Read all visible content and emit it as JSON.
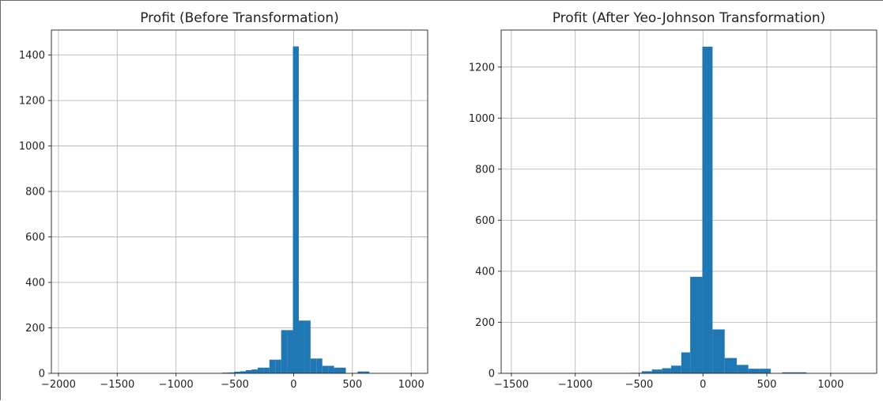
{
  "chart_data": [
    {
      "type": "bar",
      "title": "Profit (Before Transformation)",
      "xlabel": "",
      "ylabel": "",
      "xlim": [
        -2060,
        1140
      ],
      "ylim": [
        0,
        1510
      ],
      "grid": true,
      "bar_color": "#1f77b4",
      "xticks": [
        -2000,
        -1500,
        -1000,
        -500,
        0,
        500,
        1000
      ],
      "xtick_labels": [
        "−2000",
        "−1500",
        "−1000",
        "−500",
        "0",
        "500",
        "1000"
      ],
      "yticks": [
        0,
        200,
        400,
        600,
        800,
        1000,
        1200,
        1400
      ],
      "ytick_labels": [
        "0",
        "200",
        "400",
        "600",
        "800",
        "1000",
        "1200",
        "1400"
      ],
      "bins": [
        {
          "x0": -606,
          "x1": -556,
          "value": 3
        },
        {
          "x0": -556,
          "x1": -506,
          "value": 4
        },
        {
          "x0": -506,
          "x1": -456,
          "value": 7
        },
        {
          "x0": -456,
          "x1": -406,
          "value": 9
        },
        {
          "x0": -406,
          "x1": -356,
          "value": 14
        },
        {
          "x0": -356,
          "x1": -306,
          "value": 17
        },
        {
          "x0": -306,
          "x1": -256,
          "value": 25
        },
        {
          "x0": -256,
          "x1": -206,
          "value": 25
        },
        {
          "x0": -206,
          "x1": -156,
          "value": 60
        },
        {
          "x0": -156,
          "x1": -106,
          "value": 60
        },
        {
          "x0": -106,
          "x1": -56,
          "value": 190
        },
        {
          "x0": -56,
          "x1": -6,
          "value": 190
        },
        {
          "x0": -6,
          "x1": 44,
          "value": 1438
        },
        {
          "x0": 44,
          "x1": 94,
          "value": 232
        },
        {
          "x0": 94,
          "x1": 144,
          "value": 232
        },
        {
          "x0": 144,
          "x1": 194,
          "value": 65
        },
        {
          "x0": 194,
          "x1": 244,
          "value": 65
        },
        {
          "x0": 244,
          "x1": 294,
          "value": 33
        },
        {
          "x0": 294,
          "x1": 344,
          "value": 33
        },
        {
          "x0": 344,
          "x1": 394,
          "value": 25
        },
        {
          "x0": 394,
          "x1": 444,
          "value": 25
        },
        {
          "x0": 544,
          "x1": 594,
          "value": 8
        },
        {
          "x0": 594,
          "x1": 644,
          "value": 8
        }
      ]
    },
    {
      "type": "bar",
      "title": "Profit (After Yeo-Johnson Transformation)",
      "xlabel": "",
      "ylabel": "",
      "xlim": [
        -1580,
        1360
      ],
      "ylim": [
        0,
        1345
      ],
      "grid": true,
      "bar_color": "#1f77b4",
      "xticks": [
        -1500,
        -1000,
        -500,
        0,
        500,
        1000
      ],
      "xtick_labels": [
        "−1500",
        "−1000",
        "−500",
        "0",
        "500",
        "1000"
      ],
      "yticks": [
        0,
        200,
        400,
        600,
        800,
        1000,
        1200
      ],
      "ytick_labels": [
        "0",
        "200",
        "400",
        "600",
        "800",
        "1000",
        "1200"
      ],
      "bins": [
        {
          "x0": -560,
          "x1": -480,
          "value": 2
        },
        {
          "x0": -480,
          "x1": -400,
          "value": 8
        },
        {
          "x0": -400,
          "x1": -320,
          "value": 15
        },
        {
          "x0": -320,
          "x1": -250,
          "value": 20
        },
        {
          "x0": -250,
          "x1": -170,
          "value": 30
        },
        {
          "x0": -170,
          "x1": -100,
          "value": 82
        },
        {
          "x0": -100,
          "x1": -5,
          "value": 378
        },
        {
          "x0": -5,
          "x1": 75,
          "value": 1280
        },
        {
          "x0": 75,
          "x1": 170,
          "value": 172
        },
        {
          "x0": 170,
          "x1": 265,
          "value": 60
        },
        {
          "x0": 265,
          "x1": 355,
          "value": 33
        },
        {
          "x0": 355,
          "x1": 440,
          "value": 18
        },
        {
          "x0": 440,
          "x1": 530,
          "value": 18
        },
        {
          "x0": 620,
          "x1": 720,
          "value": 4
        },
        {
          "x0": 720,
          "x1": 810,
          "value": 4
        }
      ]
    }
  ]
}
